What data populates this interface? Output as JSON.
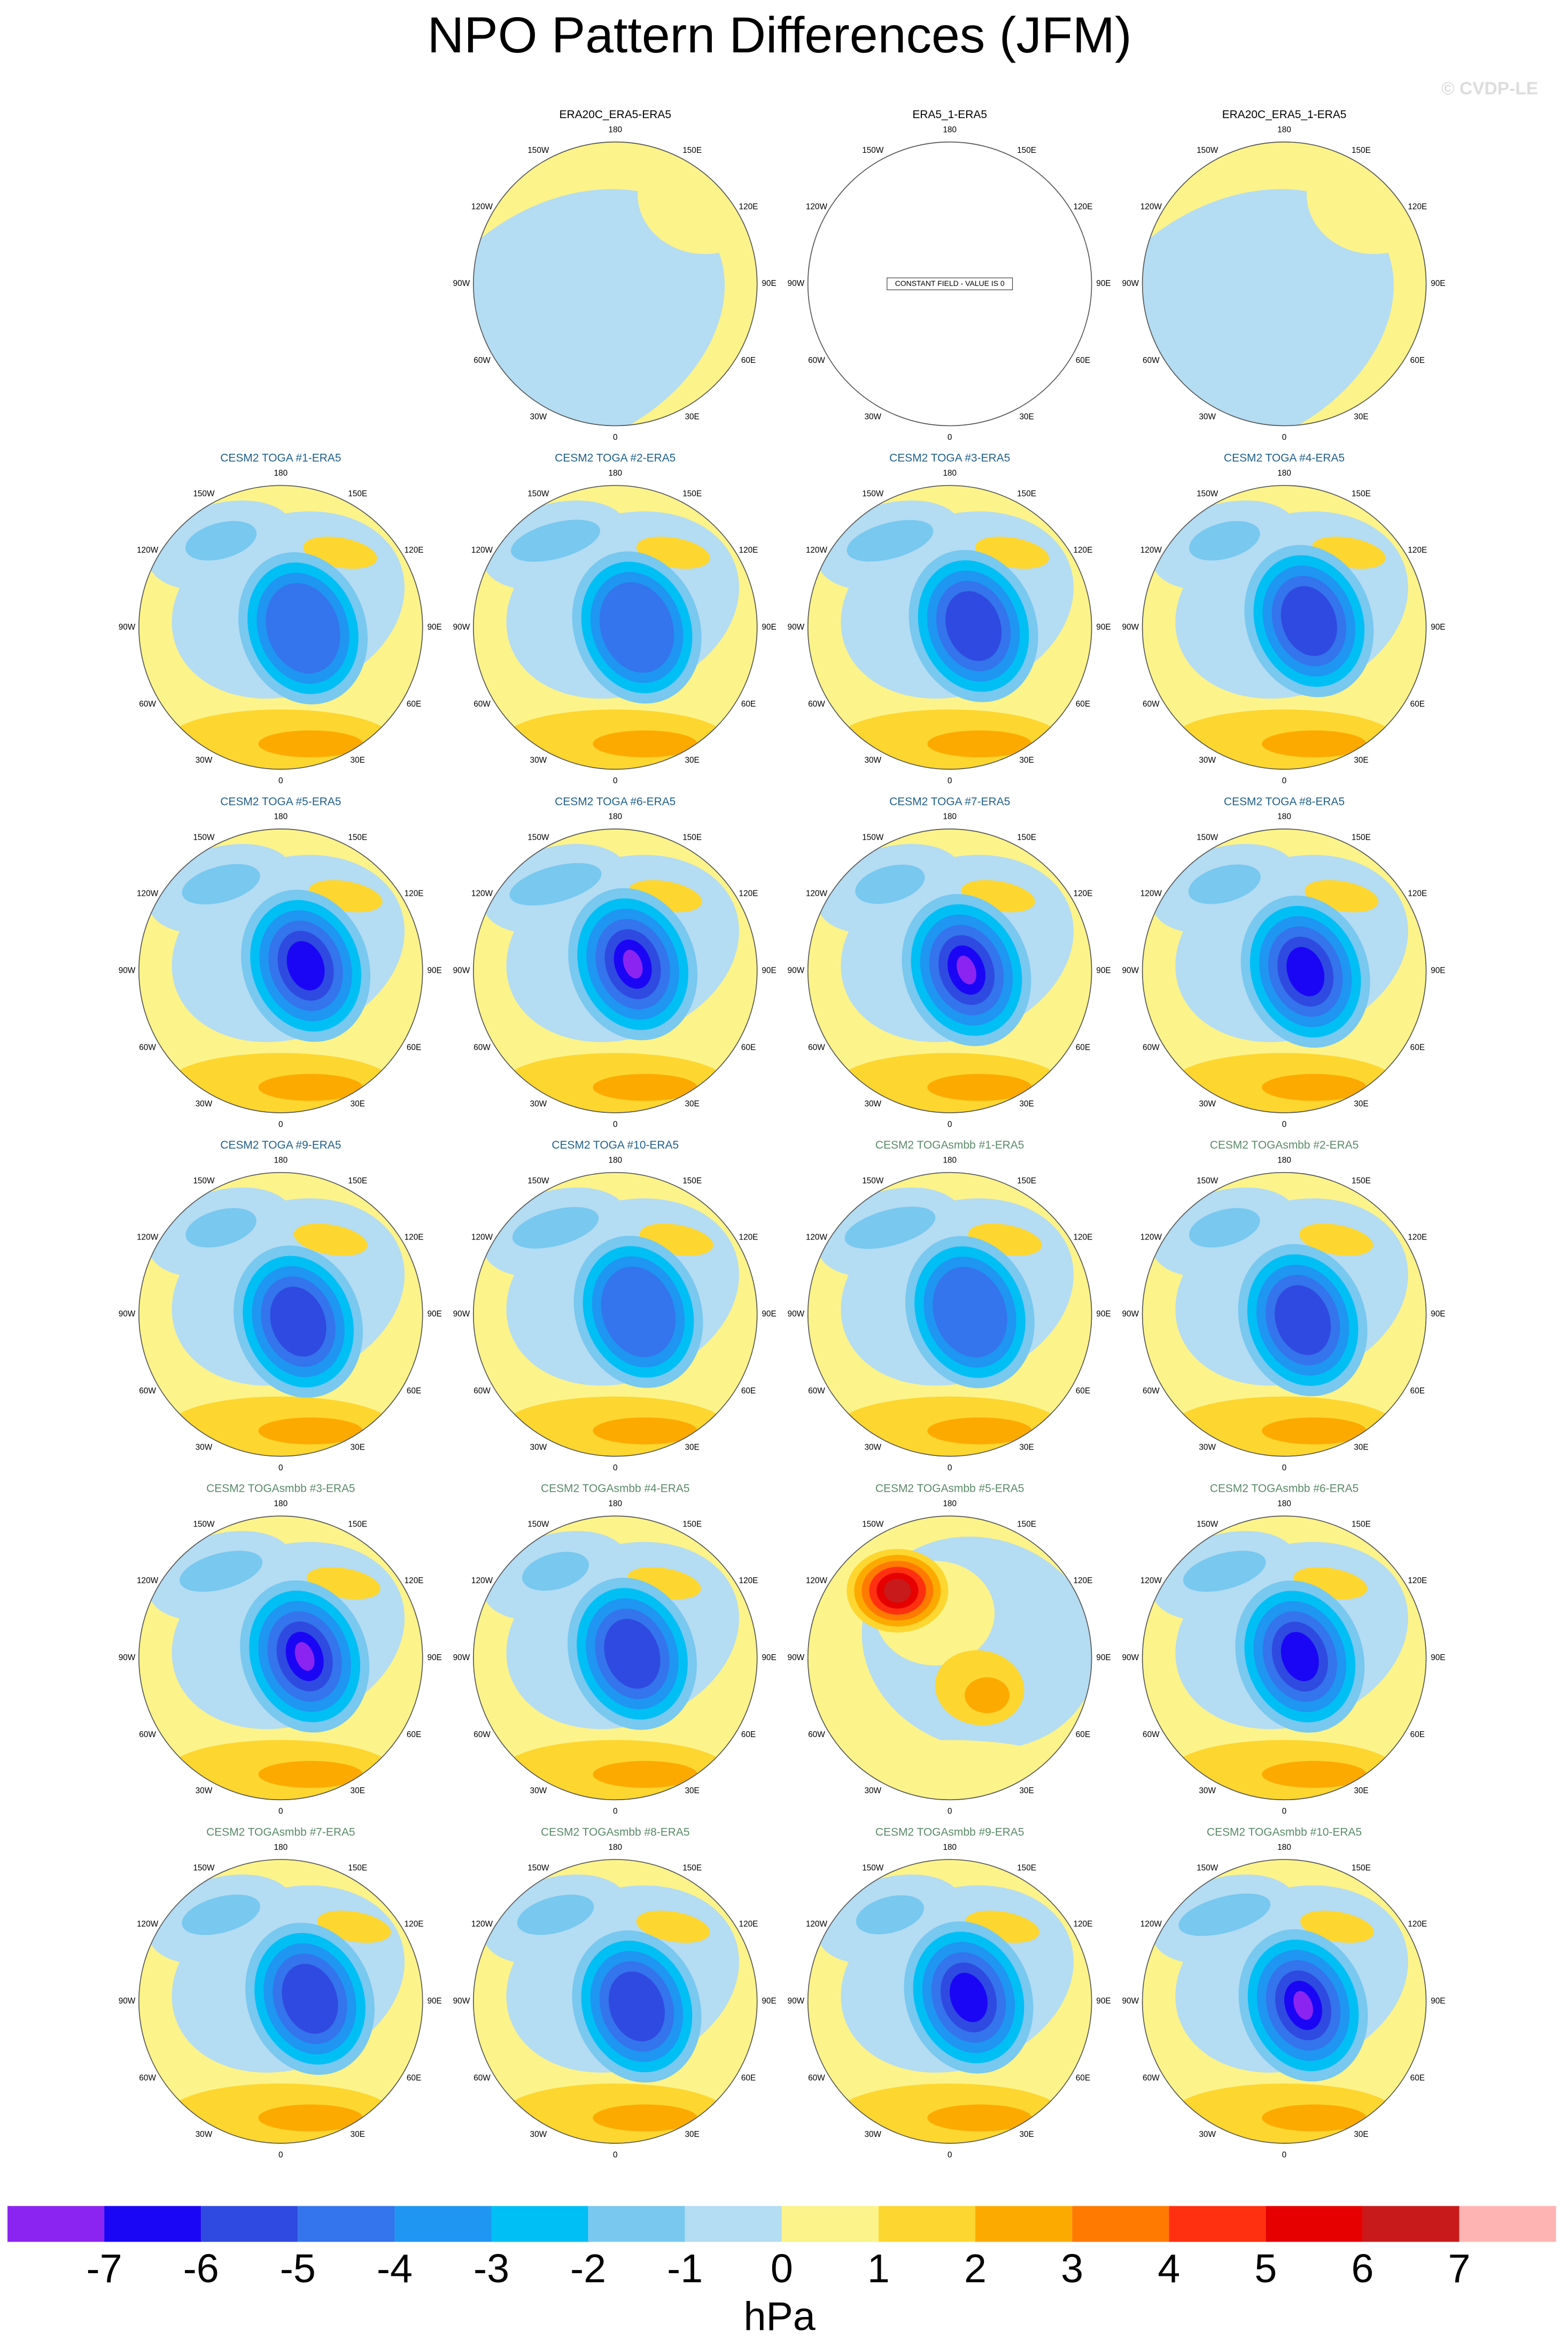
{
  "title": "NPO Pattern Differences (JFM)",
  "watermark": "© CVDP-LE",
  "lon_labels": [
    "180",
    "150E",
    "120E",
    "90E",
    "60E",
    "30E",
    "0",
    "30W",
    "60W",
    "90W",
    "120W",
    "150W"
  ],
  "panels": [
    {
      "title": "ERA20C_ERA5-ERA5",
      "color": "#000000"
    },
    {
      "title": "ERA5_1-ERA5",
      "color": "#000000",
      "note": "CONSTANT FIELD - VALUE IS 0"
    },
    {
      "title": "ERA20C_ERA5_1-ERA5",
      "color": "#000000"
    },
    {
      "title": "CESM2 TOGA #1-ERA5",
      "color": "#1f5f8b"
    },
    {
      "title": "CESM2 TOGA #2-ERA5",
      "color": "#1f5f8b"
    },
    {
      "title": "CESM2 TOGA #3-ERA5",
      "color": "#1f5f8b"
    },
    {
      "title": "CESM2 TOGA #4-ERA5",
      "color": "#1f5f8b"
    },
    {
      "title": "CESM2 TOGA #5-ERA5",
      "color": "#1f5f8b"
    },
    {
      "title": "CESM2 TOGA #6-ERA5",
      "color": "#1f5f8b"
    },
    {
      "title": "CESM2 TOGA #7-ERA5",
      "color": "#1f5f8b"
    },
    {
      "title": "CESM2 TOGA #8-ERA5",
      "color": "#1f5f8b"
    },
    {
      "title": "CESM2 TOGA #9-ERA5",
      "color": "#1f5f8b"
    },
    {
      "title": "CESM2 TOGA #10-ERA5",
      "color": "#1f5f8b"
    },
    {
      "title": "CESM2 TOGAsmbb #1-ERA5",
      "color": "#5b8a68"
    },
    {
      "title": "CESM2 TOGAsmbb #2-ERA5",
      "color": "#5b8a68"
    },
    {
      "title": "CESM2 TOGAsmbb #3-ERA5",
      "color": "#5b8a68"
    },
    {
      "title": "CESM2 TOGAsmbb #4-ERA5",
      "color": "#5b8a68"
    },
    {
      "title": "CESM2 TOGAsmbb #5-ERA5",
      "color": "#5b8a68"
    },
    {
      "title": "CESM2 TOGAsmbb #6-ERA5",
      "color": "#5b8a68"
    },
    {
      "title": "CESM2 TOGAsmbb #7-ERA5",
      "color": "#5b8a68"
    },
    {
      "title": "CESM2 TOGAsmbb #8-ERA5",
      "color": "#5b8a68"
    },
    {
      "title": "CESM2 TOGAsmbb #9-ERA5",
      "color": "#5b8a68"
    },
    {
      "title": "CESM2 TOGAsmbb #10-ERA5",
      "color": "#5b8a68"
    }
  ],
  "colorbar": {
    "colors": [
      "#8b24f0",
      "#1a06f5",
      "#2f4ae0",
      "#3474ec",
      "#1e96f2",
      "#00bff5",
      "#78c8f0",
      "#b4dcf2",
      "#fcf38a",
      "#fdd630",
      "#fdaa00",
      "#ff7a00",
      "#ff3010",
      "#e60000",
      "#c81a1a",
      "#ffb4b4"
    ],
    "ticks": [
      -7,
      -6,
      -5,
      -4,
      -3,
      -2,
      -1,
      0,
      1,
      2,
      3,
      4,
      5,
      6,
      7
    ],
    "label": "hPa"
  }
}
